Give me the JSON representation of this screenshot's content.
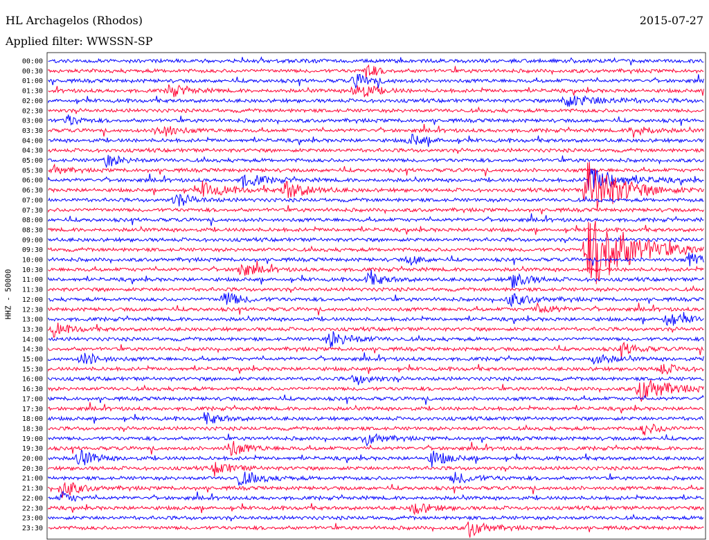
{
  "header": {
    "station": "HL Archagelos (Rhodos)",
    "date": "2015-07-27",
    "filter_label": "Applied filter: WWSSN-SP"
  },
  "chart_data": {
    "type": "line",
    "title": "HL Archagelos (Rhodos)",
    "ylabel": "HHZ - 50000",
    "xlabel": "",
    "colors": [
      "#0000ff",
      "#ff0033"
    ],
    "rows": [
      "00:00",
      "00:30",
      "01:00",
      "01:30",
      "02:00",
      "02:30",
      "03:00",
      "03:30",
      "04:00",
      "04:30",
      "05:00",
      "05:30",
      "06:00",
      "06:30",
      "07:00",
      "07:30",
      "08:00",
      "08:30",
      "09:00",
      "09:30",
      "10:00",
      "10:30",
      "11:00",
      "11:30",
      "12:00",
      "12:30",
      "13:00",
      "13:30",
      "14:00",
      "14:30",
      "15:00",
      "15:30",
      "16:00",
      "16:30",
      "17:00",
      "17:30",
      "18:00",
      "18:30",
      "19:00",
      "19:30",
      "20:00",
      "20:30",
      "21:00",
      "21:30",
      "22:00",
      "22:30",
      "23:00",
      "23:30"
    ],
    "row_minutes": 30,
    "events": [
      {
        "row": 1,
        "minute": 14.5,
        "amplitude": 12,
        "duration": 1
      },
      {
        "row": 2,
        "minute": 14,
        "amplitude": 10,
        "duration": 1.5
      },
      {
        "row": 3,
        "minute": 5.5,
        "amplitude": 10,
        "duration": 1.5
      },
      {
        "row": 3,
        "minute": 14,
        "amplitude": 16,
        "duration": 1.5
      },
      {
        "row": 4,
        "minute": 23.4,
        "amplitude": 9,
        "duration": 4
      },
      {
        "row": 6,
        "minute": 0.8,
        "amplitude": 10,
        "duration": 1
      },
      {
        "row": 7,
        "minute": 5,
        "amplitude": 12,
        "duration": 1.5
      },
      {
        "row": 7,
        "minute": 26.7,
        "amplitude": 10,
        "duration": 1.5
      },
      {
        "row": 8,
        "minute": 16.5,
        "amplitude": 9,
        "duration": 1.5
      },
      {
        "row": 10,
        "minute": 2.6,
        "amplitude": 9,
        "duration": 1.5
      },
      {
        "row": 11,
        "minute": 0.2,
        "amplitude": 8,
        "duration": 1
      },
      {
        "row": 12,
        "minute": 8.9,
        "amplitude": 10,
        "duration": 2
      },
      {
        "row": 12,
        "minute": 24.6,
        "amplitude": 20,
        "duration": 3
      },
      {
        "row": 13,
        "minute": 7,
        "amplitude": 12,
        "duration": 2
      },
      {
        "row": 13,
        "minute": 10.8,
        "amplitude": 14,
        "duration": 2
      },
      {
        "row": 13,
        "minute": 24.6,
        "amplitude": 45,
        "duration": 3
      },
      {
        "row": 14,
        "minute": 5.8,
        "amplitude": 10,
        "duration": 1.5
      },
      {
        "row": 19,
        "minute": 25,
        "amplitude": 18,
        "duration": 3
      },
      {
        "row": 19,
        "minute": 24.6,
        "amplitude": 45,
        "duration": 4
      },
      {
        "row": 20,
        "minute": 16.5,
        "amplitude": 8,
        "duration": 1
      },
      {
        "row": 20,
        "minute": 29.3,
        "amplitude": 10,
        "duration": 1.5
      },
      {
        "row": 21,
        "minute": 8.7,
        "amplitude": 12,
        "duration": 1.5
      },
      {
        "row": 22,
        "minute": 14.6,
        "amplitude": 10,
        "duration": 1.5
      },
      {
        "row": 22,
        "minute": 21.2,
        "amplitude": 12,
        "duration": 1.5
      },
      {
        "row": 24,
        "minute": 8,
        "amplitude": 12,
        "duration": 1.5
      },
      {
        "row": 24,
        "minute": 21,
        "amplitude": 10,
        "duration": 2
      },
      {
        "row": 25,
        "minute": 22.3,
        "amplitude": 9,
        "duration": 1.5
      },
      {
        "row": 26,
        "minute": 28.2,
        "amplitude": 11,
        "duration": 2
      },
      {
        "row": 27,
        "minute": 0.2,
        "amplitude": 10,
        "duration": 1.5
      },
      {
        "row": 28,
        "minute": 12.8,
        "amplitude": 12,
        "duration": 2
      },
      {
        "row": 29,
        "minute": 26.2,
        "amplitude": 9,
        "duration": 1.5
      },
      {
        "row": 30,
        "minute": 1.5,
        "amplitude": 10,
        "duration": 1.5
      },
      {
        "row": 30,
        "minute": 24.9,
        "amplitude": 9,
        "duration": 1.5
      },
      {
        "row": 31,
        "minute": 27.9,
        "amplitude": 9,
        "duration": 1.5
      },
      {
        "row": 32,
        "minute": 14,
        "amplitude": 9,
        "duration": 1.5
      },
      {
        "row": 33,
        "minute": 27,
        "amplitude": 20,
        "duration": 2.5
      },
      {
        "row": 36,
        "minute": 7.2,
        "amplitude": 8,
        "duration": 1.5
      },
      {
        "row": 37,
        "minute": 27.2,
        "amplitude": 9,
        "duration": 1.5
      },
      {
        "row": 38,
        "minute": 14.5,
        "amplitude": 10,
        "duration": 1.5
      },
      {
        "row": 39,
        "minute": 8.2,
        "amplitude": 14,
        "duration": 1.5
      },
      {
        "row": 40,
        "minute": 1.3,
        "amplitude": 14,
        "duration": 1.5
      },
      {
        "row": 40,
        "minute": 17.5,
        "amplitude": 12,
        "duration": 1.5
      },
      {
        "row": 41,
        "minute": 7.6,
        "amplitude": 10,
        "duration": 1.5
      },
      {
        "row": 42,
        "minute": 8.7,
        "amplitude": 10,
        "duration": 2
      },
      {
        "row": 42,
        "minute": 18.5,
        "amplitude": 8,
        "duration": 2
      },
      {
        "row": 43,
        "minute": 0.6,
        "amplitude": 14,
        "duration": 1.5
      },
      {
        "row": 44,
        "minute": 0.6,
        "amplitude": 9,
        "duration": 1
      },
      {
        "row": 45,
        "minute": 16.7,
        "amplitude": 10,
        "duration": 1.5
      },
      {
        "row": 47,
        "minute": 19.2,
        "amplitude": 14,
        "duration": 1.5
      }
    ]
  }
}
